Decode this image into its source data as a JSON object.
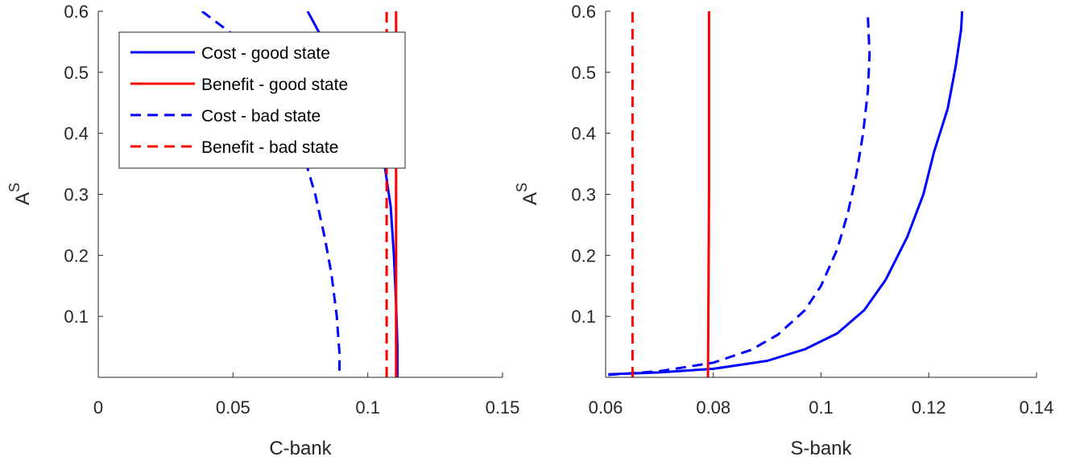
{
  "chart_data": [
    {
      "type": "line",
      "xlabel": "C-bank",
      "ylabel": "A",
      "ylabel_superscript": "S",
      "xlim": [
        0,
        0.15
      ],
      "ylim": [
        0,
        0.6
      ],
      "xticks": [
        "0",
        "0.05",
        "0.1",
        "0.15"
      ],
      "yticks": [
        "0.1",
        "0.2",
        "0.3",
        "0.4",
        "0.5",
        "0.6"
      ],
      "legend": {
        "placement": "top-left",
        "entries": [
          "Cost - good state",
          "Benefit - good state",
          "Cost - bad state",
          "Benefit - bad state"
        ]
      },
      "series": [
        {
          "name": "Cost - good state",
          "color": "#0000ff",
          "dash": "solid",
          "points": [
            [
              0.0777,
              0.6
            ],
            [
              0.085,
              0.54
            ],
            [
              0.092,
              0.49
            ],
            [
              0.0985,
              0.44
            ],
            [
              0.1035,
              0.39
            ],
            [
              0.1065,
              0.34
            ],
            [
              0.1085,
              0.28
            ],
            [
              0.1097,
              0.2
            ],
            [
              0.1105,
              0.12
            ],
            [
              0.111,
              0.05
            ],
            [
              0.111,
              0.0
            ]
          ]
        },
        {
          "name": "Benefit - good state",
          "color": "#ff0000",
          "dash": "solid",
          "points": [
            [
              0.1105,
              0.0
            ],
            [
              0.1105,
              0.6
            ]
          ]
        },
        {
          "name": "Cost - bad state",
          "color": "#0000ff",
          "dash": "dashed",
          "points": [
            [
              0.0385,
              0.6
            ],
            [
              0.0505,
              0.56
            ],
            [
              0.0615,
              0.5
            ],
            [
              0.0705,
              0.43
            ],
            [
              0.0765,
              0.36
            ],
            [
              0.0805,
              0.3
            ],
            [
              0.084,
              0.23
            ],
            [
              0.0865,
              0.17
            ],
            [
              0.0885,
              0.1
            ],
            [
              0.0895,
              0.04
            ],
            [
              0.0895,
              0.0
            ]
          ]
        },
        {
          "name": "Benefit - bad state",
          "color": "#ff0000",
          "dash": "dashed",
          "points": [
            [
              0.107,
              0.0
            ],
            [
              0.107,
              0.6
            ]
          ]
        }
      ]
    },
    {
      "type": "line",
      "xlabel": "S-bank",
      "ylabel": "A",
      "ylabel_superscript": "S",
      "xlim": [
        0.06,
        0.14
      ],
      "ylim": [
        0,
        0.6
      ],
      "xticks": [
        "0.06",
        "0.08",
        "0.1",
        "0.12",
        "0.14"
      ],
      "yticks": [
        "0.1",
        "0.2",
        "0.3",
        "0.4",
        "0.5",
        "0.6"
      ],
      "series": [
        {
          "name": "Cost - good state",
          "color": "#0000ff",
          "dash": "solid",
          "points": [
            [
              0.0605,
              0.005
            ],
            [
              0.07,
              0.008
            ],
            [
              0.08,
              0.014
            ],
            [
              0.09,
              0.027
            ],
            [
              0.097,
              0.046
            ],
            [
              0.103,
              0.072
            ],
            [
              0.108,
              0.11
            ],
            [
              0.112,
              0.16
            ],
            [
              0.116,
              0.23
            ],
            [
              0.119,
              0.3
            ],
            [
              0.121,
              0.37
            ],
            [
              0.1235,
              0.44
            ],
            [
              0.125,
              0.51
            ],
            [
              0.126,
              0.57
            ],
            [
              0.1262,
              0.6
            ]
          ]
        },
        {
          "name": "Benefit - good state",
          "color": "#ff0000",
          "dash": "solid",
          "points": [
            [
              0.079,
              0.0
            ],
            [
              0.0792,
              0.3
            ],
            [
              0.0792,
              0.6
            ]
          ]
        },
        {
          "name": "Cost - bad state",
          "color": "#0000ff",
          "dash": "dashed",
          "points": [
            [
              0.0605,
              0.004
            ],
            [
              0.07,
              0.01
            ],
            [
              0.08,
              0.024
            ],
            [
              0.087,
              0.045
            ],
            [
              0.092,
              0.07
            ],
            [
              0.097,
              0.11
            ],
            [
              0.1,
              0.15
            ],
            [
              0.103,
              0.21
            ],
            [
              0.105,
              0.27
            ],
            [
              0.1065,
              0.33
            ],
            [
              0.1078,
              0.4
            ],
            [
              0.1087,
              0.47
            ],
            [
              0.109,
              0.53
            ],
            [
              0.1087,
              0.59
            ]
          ]
        },
        {
          "name": "Benefit - bad state",
          "color": "#ff0000",
          "dash": "dashed",
          "points": [
            [
              0.065,
              0.0
            ],
            [
              0.065,
              0.6
            ]
          ]
        }
      ]
    }
  ]
}
